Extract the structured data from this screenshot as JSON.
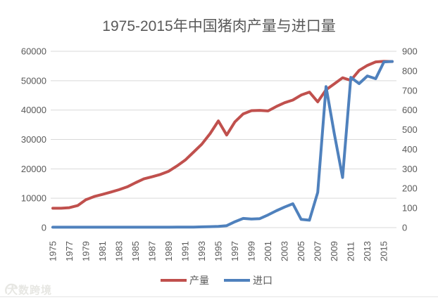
{
  "title": "1975-2015年中国猪肉产量与进口量",
  "watermark": {
    "text": "大数跨境",
    "icon": "brand-logo-icon"
  },
  "colors": {
    "production_line": "#c0504d",
    "import_line": "#4f81bd",
    "gridline": "#d9d9d9",
    "axis_text": "#595959",
    "title_text": "#595959",
    "watermark_text": "#e7e7e3"
  },
  "chart_data": {
    "type": "line",
    "title": "1975-2015年中国猪肉产量与进口量",
    "grid": true,
    "legend_position": "bottom",
    "x": [
      1975,
      1976,
      1977,
      1978,
      1979,
      1980,
      1981,
      1982,
      1983,
      1984,
      1985,
      1986,
      1987,
      1988,
      1989,
      1990,
      1991,
      1992,
      1993,
      1994,
      1995,
      1996,
      1997,
      1998,
      1999,
      2000,
      2001,
      2002,
      2003,
      2004,
      2005,
      2006,
      2007,
      2008,
      2009,
      2010,
      2011,
      2012,
      2013,
      2014,
      2015,
      2016
    ],
    "x_tick_labels": [
      "1975",
      "1977",
      "1979",
      "1981",
      "1983",
      "1985",
      "1987",
      "1989",
      "1991",
      "1993",
      "1995",
      "1997",
      "1999",
      "2001",
      "2003",
      "2005",
      "2007",
      "2009",
      "2011",
      "2013",
      "2015"
    ],
    "series": [
      {
        "name": "产量",
        "axis": "left",
        "color": "#c0504d",
        "values": [
          6600,
          6600,
          6800,
          7500,
          9500,
          10600,
          11300,
          12100,
          12900,
          13900,
          15300,
          16600,
          17300,
          18100,
          19200,
          21000,
          23000,
          25700,
          28400,
          32000,
          36300,
          31500,
          36000,
          38700,
          39800,
          39900,
          39700,
          41200,
          42500,
          43400,
          45100,
          46100,
          42800,
          46900,
          48900,
          51000,
          50100,
          53500,
          55200,
          56400,
          56600,
          56500
        ]
      },
      {
        "name": "进口",
        "axis": "right",
        "color": "#4f81bd",
        "values": [
          2,
          2,
          2,
          2,
          2,
          2,
          2,
          2,
          2,
          2,
          2,
          2,
          2,
          2,
          2,
          3,
          3,
          3,
          4,
          5,
          6,
          10,
          30,
          47,
          44,
          46,
          65,
          86,
          105,
          122,
          42,
          38,
          180,
          720,
          480,
          256,
          767,
          735,
          774,
          760,
          846,
          848
        ]
      }
    ],
    "left_axis": {
      "min": 0,
      "max": 60000,
      "step": 10000,
      "ticks": [
        "0",
        "10000",
        "20000",
        "30000",
        "40000",
        "50000",
        "60000"
      ]
    },
    "right_axis": {
      "min": 0,
      "max": 900,
      "step": 100,
      "ticks": [
        "0",
        "100",
        "200",
        "300",
        "400",
        "500",
        "600",
        "700",
        "800",
        "900"
      ]
    }
  }
}
